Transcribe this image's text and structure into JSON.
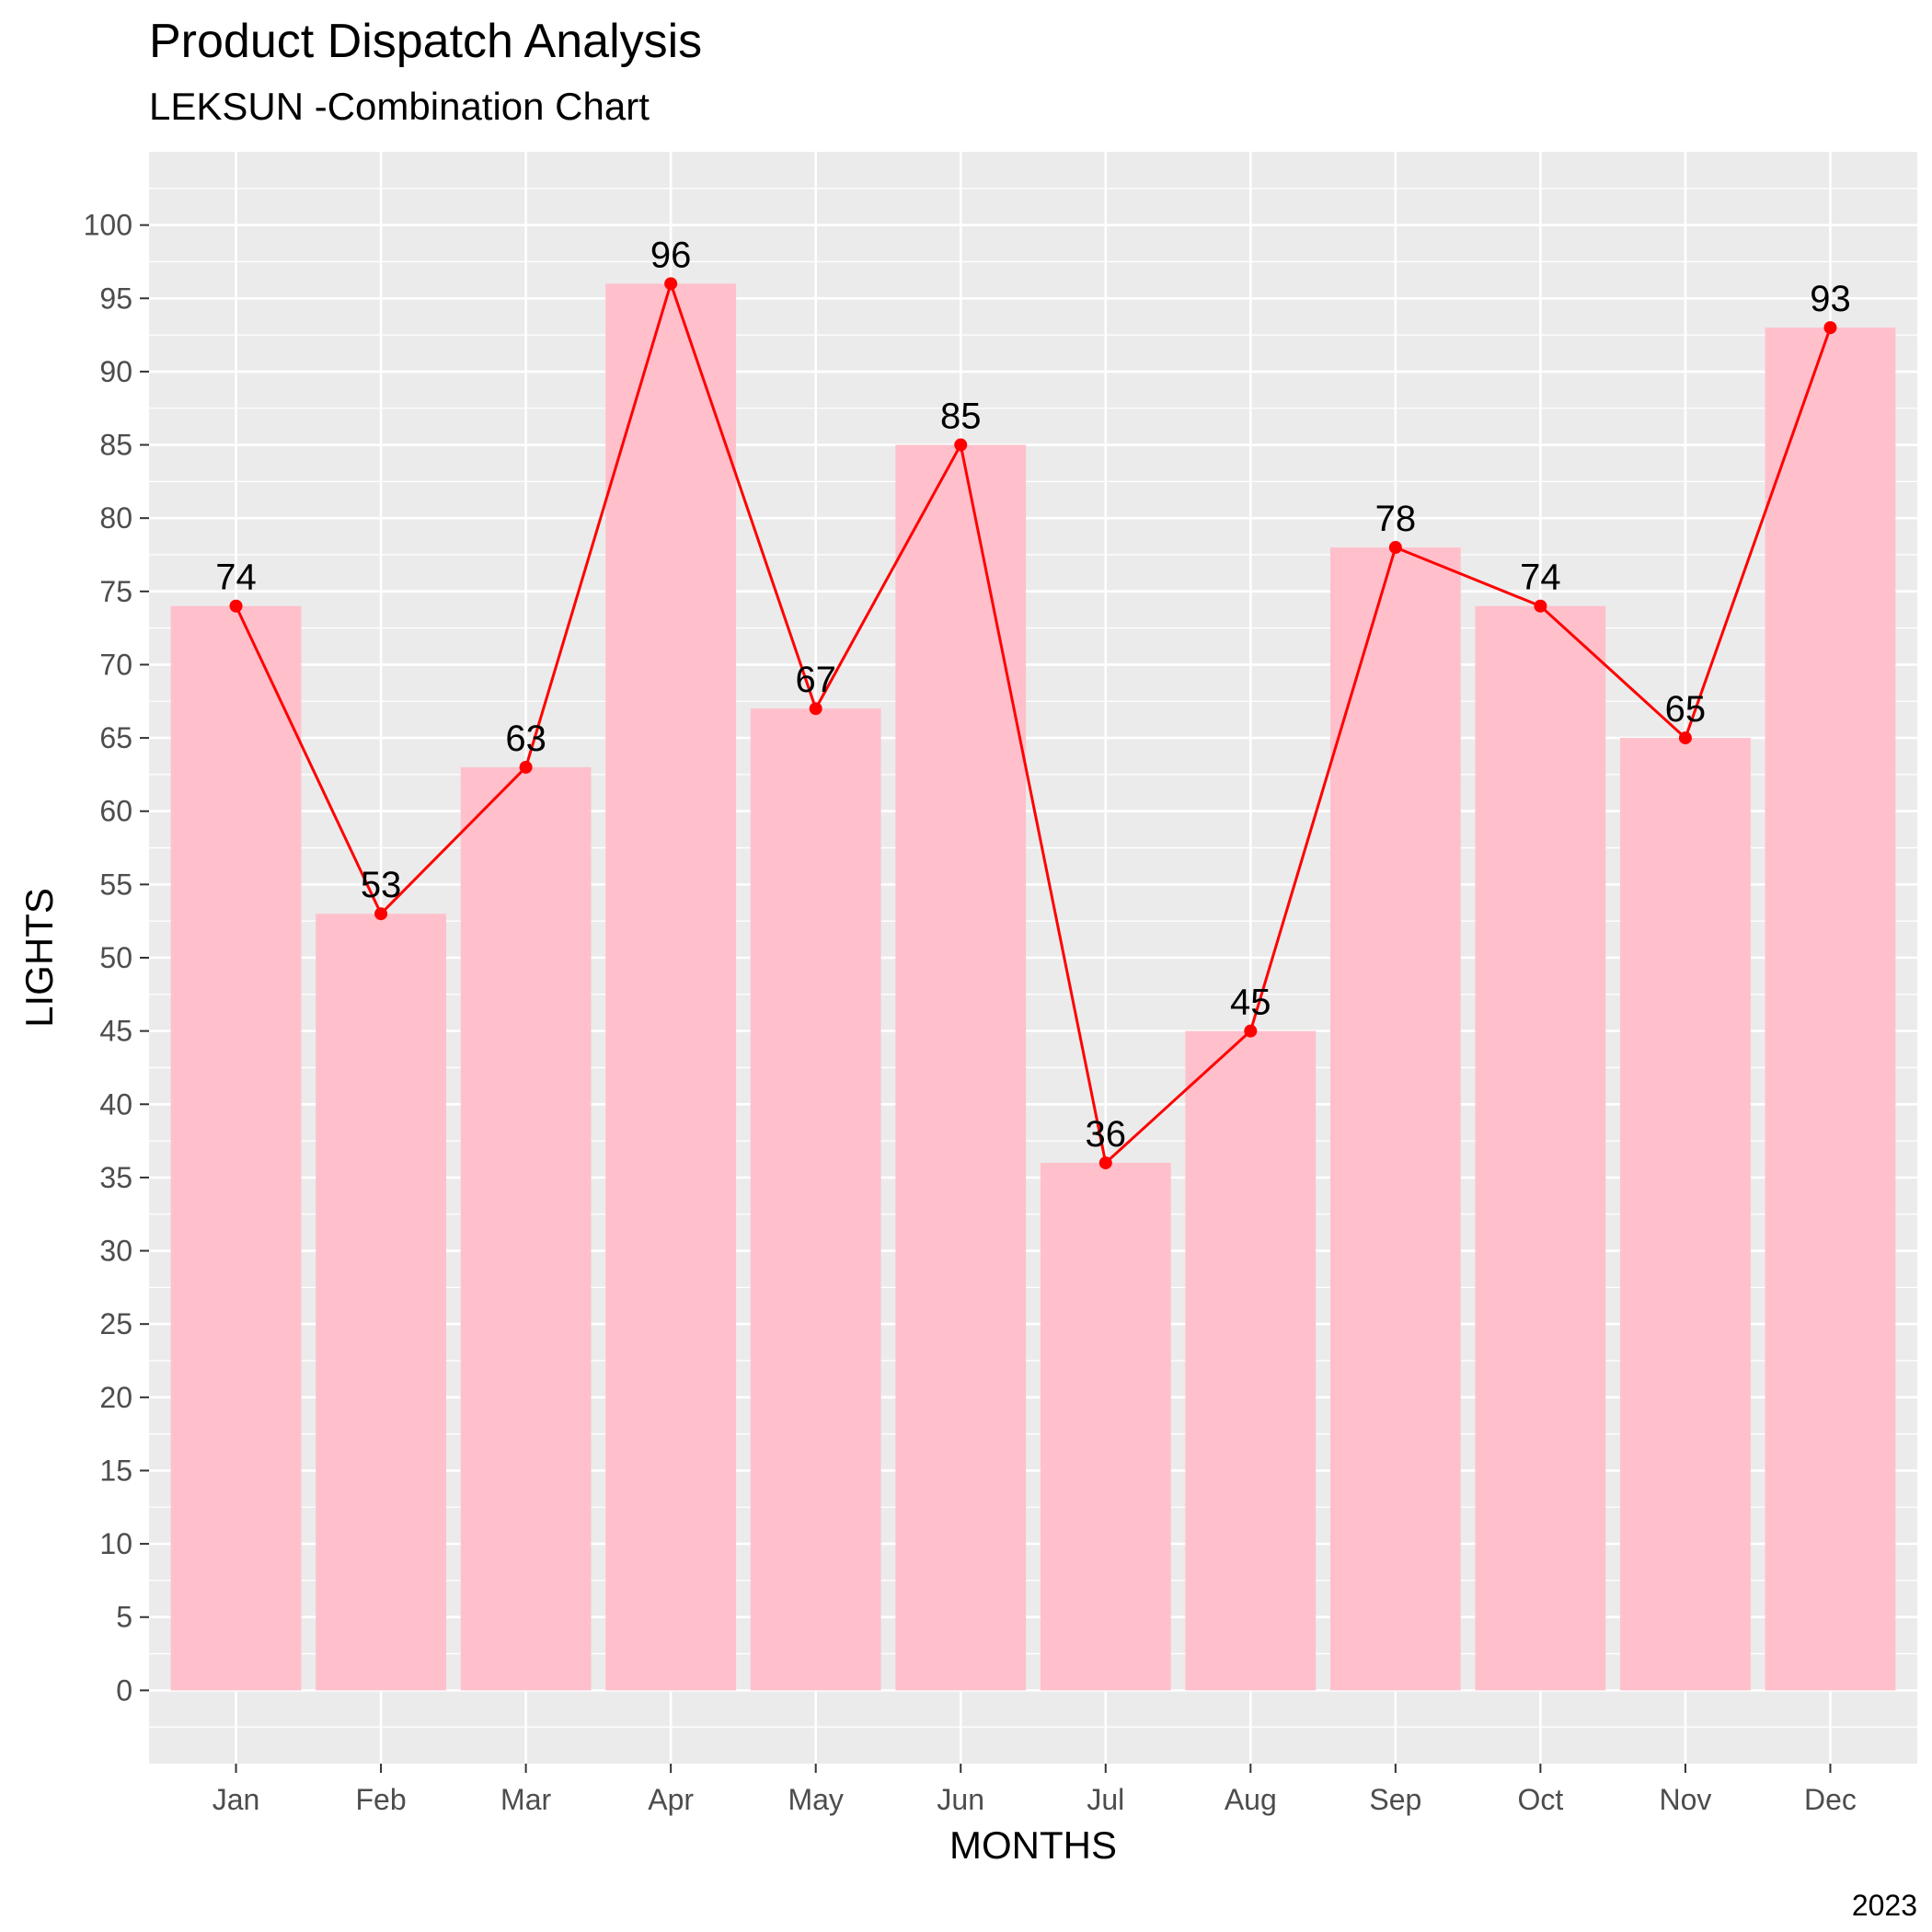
{
  "chart_data": {
    "type": "bar",
    "title": "Product Dispatch Analysis",
    "subtitle": "LEKSUN -Combination Chart",
    "caption": "2023",
    "xlabel": "MONTHS",
    "ylabel": "LIGHTS",
    "categories": [
      "Jan",
      "Feb",
      "Mar",
      "Apr",
      "May",
      "Jun",
      "Jul",
      "Aug",
      "Sep",
      "Oct",
      "Nov",
      "Dec"
    ],
    "values": [
      74,
      53,
      63,
      96,
      67,
      85,
      36,
      45,
      78,
      74,
      65,
      93
    ],
    "overlay": {
      "type": "line",
      "values": [
        74,
        53,
        63,
        96,
        67,
        85,
        36,
        45,
        78,
        74,
        65,
        93
      ]
    },
    "ylim": [
      -5,
      105
    ],
    "yticks": [
      0,
      5,
      10,
      15,
      20,
      25,
      30,
      35,
      40,
      45,
      50,
      55,
      60,
      65,
      70,
      75,
      80,
      85,
      90,
      95,
      100
    ],
    "grid": true,
    "legend": "none",
    "colors": {
      "bar": "#FFC0CB",
      "line": "#FF0000",
      "panel": "#EBEBEB",
      "grid": "#FFFFFF"
    }
  }
}
